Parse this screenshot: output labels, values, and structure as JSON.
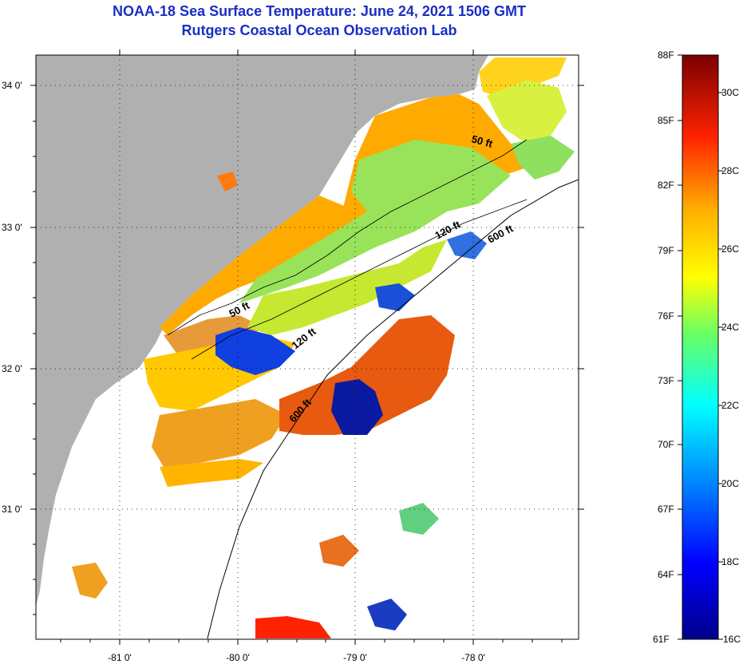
{
  "header": {
    "title": "NOAA-18 Sea Surface Temperature:  June 24, 2021 1506 GMT",
    "subtitle": "Rutgers Coastal Ocean Observation Lab"
  },
  "axes": {
    "lat_labels": [
      "34 0'",
      "33 0'",
      "32 0'",
      "31 0'"
    ],
    "lon_labels": [
      "-81 0'",
      "-80 0'",
      "-79 0'",
      "-78 0'"
    ]
  },
  "isobaths": {
    "label_50_north": "50 ft",
    "label_120_north": "120 ft",
    "label_600_north": "600 ft",
    "label_50_south": "50 ft",
    "label_120_south": "120 ft",
    "label_600_south": "600 ft"
  },
  "colorbar": {
    "top_label": "88F",
    "bottom_f": "61F",
    "bottom_c": "16C",
    "f_labels": [
      "85F",
      "82F",
      "79F",
      "76F",
      "73F",
      "70F",
      "67F",
      "64F"
    ],
    "c_labels": [
      "30C",
      "28C",
      "26C",
      "24C",
      "22C",
      "20C",
      "18C"
    ],
    "colors": {
      "land": "#b0b0b0",
      "cloud": "#ffffff"
    }
  }
}
